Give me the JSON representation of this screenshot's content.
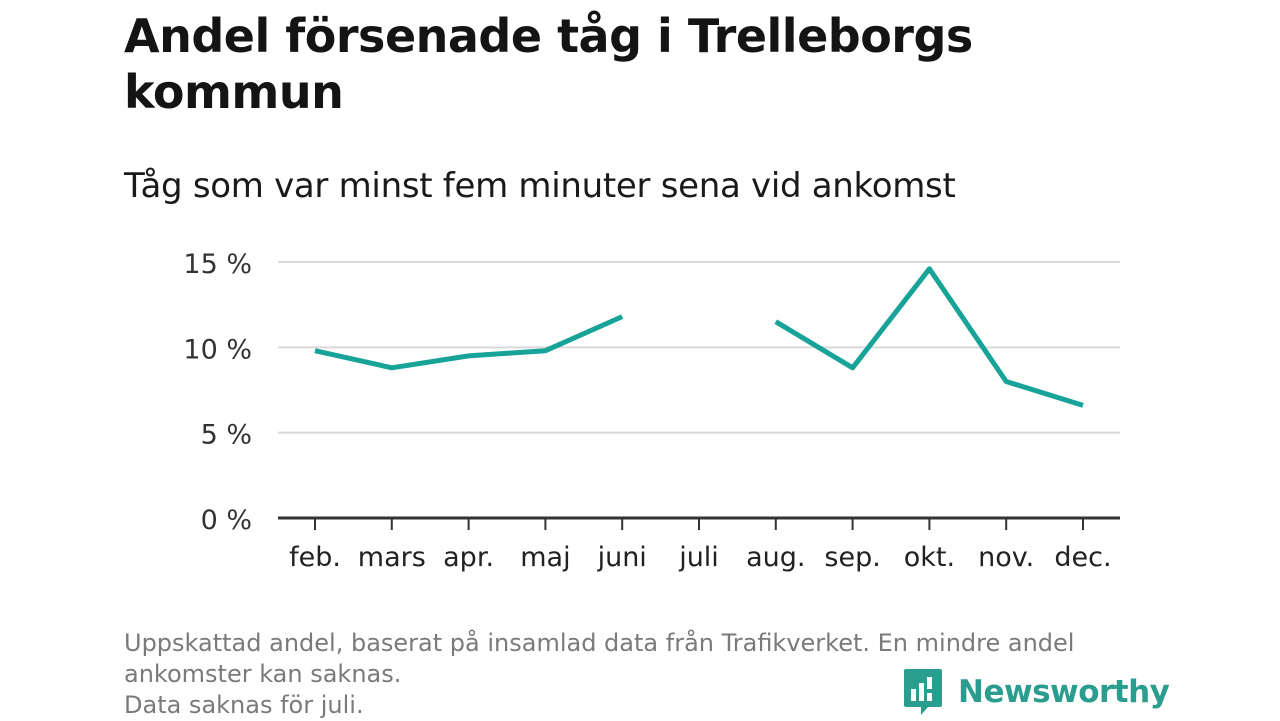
{
  "header": {
    "title": "Andel försenade tåg i Trelleborgs kommun",
    "subtitle": "Tåg som var minst fem minuter sena vid ankomst"
  },
  "chart_data": {
    "type": "line",
    "title": "Andel försenade tåg i Trelleborgs kommun",
    "subtitle": "Tåg som var minst fem minuter sena vid ankomst",
    "xlabel": "",
    "ylabel": "",
    "categories": [
      "feb.",
      "mars",
      "apr.",
      "maj",
      "juni",
      "juli",
      "aug.",
      "sep.",
      "okt.",
      "nov.",
      "dec."
    ],
    "series": [
      {
        "values": [
          9.8,
          8.8,
          9.5,
          9.8,
          11.8,
          null,
          11.5,
          8.8,
          14.6,
          8.0,
          6.6
        ]
      }
    ],
    "y_ticks": [
      0,
      5,
      10,
      15
    ],
    "y_tick_labels": [
      "0 %",
      "5 %",
      "10 %",
      "15 %"
    ],
    "ylim": [
      0,
      15
    ],
    "grid": true,
    "line_color": "#17a398"
  },
  "footer": {
    "note_lines": [
      "Uppskattad andel, baserat på insamlad data från Trafikverket. En mindre andel",
      "ankomster kan saknas.",
      "Data saknas för juli."
    ],
    "brand": "Newsworthy",
    "brand_color": "#2a9d8f"
  }
}
